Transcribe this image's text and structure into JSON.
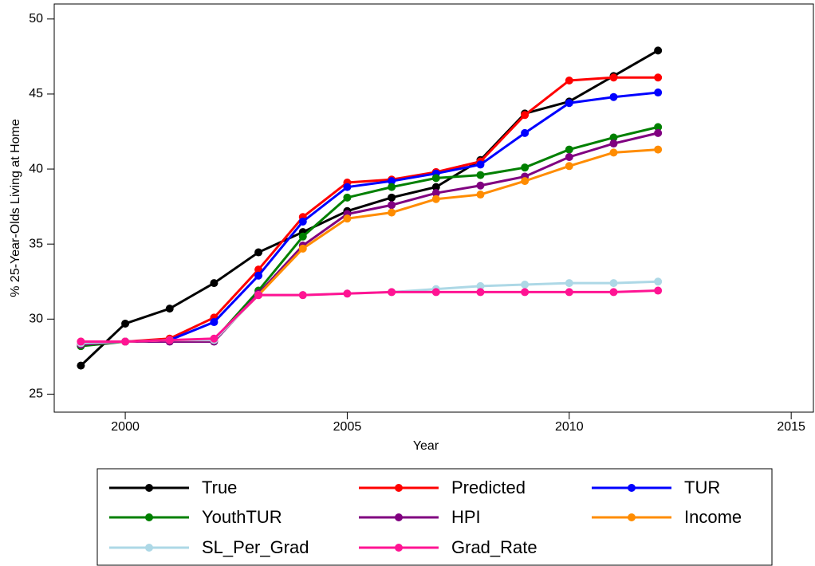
{
  "chart_data": {
    "type": "line",
    "x_label": "Year",
    "y_label": "% 25-Year-Olds Living at Home",
    "x": [
      1999,
      2000,
      2001,
      2002,
      2003,
      2004,
      2005,
      2006,
      2007,
      2008,
      2009,
      2010,
      2011,
      2012
    ],
    "xlim": [
      1998.4,
      2015.5
    ],
    "xticks": [
      2000,
      2005,
      2010,
      2015
    ],
    "ylim": [
      23.8,
      51.0
    ],
    "yticks": [
      25,
      30,
      35,
      40,
      45,
      50
    ],
    "legend": "bottom",
    "series": [
      {
        "name": "True",
        "color": "#000000",
        "values": [
          26.9,
          29.7,
          30.7,
          32.4,
          34.45,
          35.8,
          37.2,
          38.1,
          38.8,
          40.6,
          43.7,
          44.5,
          46.2,
          47.9
        ]
      },
      {
        "name": "Predicted",
        "color": "#ff0000",
        "values": [
          28.5,
          28.5,
          28.7,
          30.1,
          33.3,
          36.8,
          39.1,
          39.3,
          39.8,
          40.5,
          43.6,
          45.9,
          46.1,
          46.1
        ]
      },
      {
        "name": "TUR",
        "color": "#0000ff",
        "values": [
          28.4,
          28.5,
          28.6,
          29.8,
          32.9,
          36.5,
          38.8,
          39.2,
          39.7,
          40.3,
          42.4,
          44.4,
          44.8,
          45.1
        ]
      },
      {
        "name": "YouthTUR",
        "color": "#008000",
        "values": [
          28.2,
          28.5,
          28.6,
          28.6,
          31.9,
          35.5,
          38.1,
          38.8,
          39.4,
          39.6,
          40.1,
          41.3,
          42.1,
          42.8
        ]
      },
      {
        "name": "HPI",
        "color": "#800080",
        "values": [
          28.3,
          28.5,
          28.5,
          28.5,
          31.7,
          34.9,
          37.0,
          37.6,
          38.4,
          38.9,
          39.5,
          40.8,
          41.7,
          42.4
        ]
      },
      {
        "name": "Income",
        "color": "#ff8c00",
        "values": [
          28.4,
          28.5,
          28.6,
          28.6,
          31.6,
          34.7,
          36.7,
          37.1,
          38.0,
          38.3,
          39.2,
          40.2,
          41.1,
          41.3
        ]
      },
      {
        "name": "SL_Per_Grad",
        "color": "#add8e6",
        "values": [
          28.4,
          28.5,
          28.6,
          28.6,
          31.6,
          31.6,
          31.7,
          31.8,
          32.0,
          32.2,
          32.3,
          32.4,
          32.4,
          32.5
        ]
      },
      {
        "name": "Grad_Rate",
        "color": "#ff1493",
        "values": [
          28.5,
          28.5,
          28.6,
          28.7,
          31.6,
          31.6,
          31.7,
          31.8,
          31.8,
          31.8,
          31.8,
          31.8,
          31.8,
          31.9
        ]
      }
    ]
  }
}
